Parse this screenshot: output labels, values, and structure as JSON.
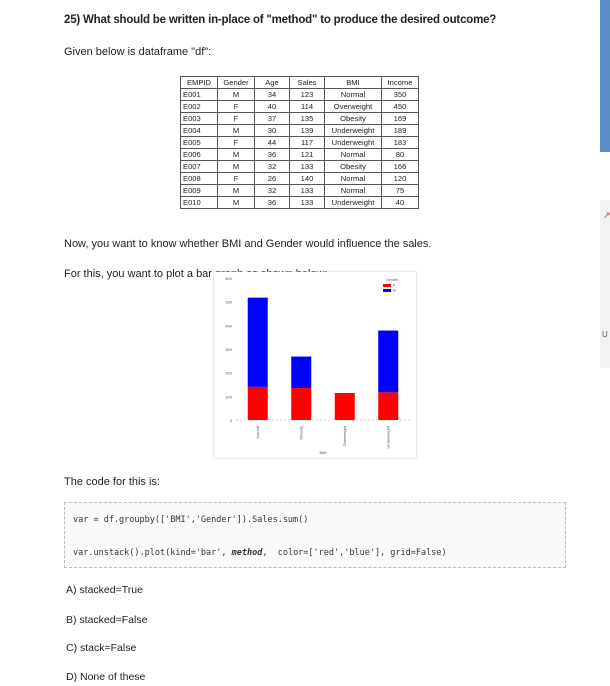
{
  "question": "25) What should be written in-place of \"method\" to produce the desired outcome?",
  "given": "Given below is dataframe \"df\":",
  "table": {
    "headers": [
      "EMPID",
      "Gender",
      "Age",
      "Sales",
      "BMI",
      "Income"
    ],
    "rows": [
      [
        "E001",
        "M",
        "34",
        "123",
        "Normal",
        "350"
      ],
      [
        "E002",
        "F",
        "40",
        "114",
        "Overweight",
        "450"
      ],
      [
        "E003",
        "F",
        "37",
        "135",
        "Obesity",
        "169"
      ],
      [
        "E004",
        "M",
        "30",
        "139",
        "Underweight",
        "189"
      ],
      [
        "E005",
        "F",
        "44",
        "117",
        "Underweight",
        "183"
      ],
      [
        "E006",
        "M",
        "36",
        "121",
        "Normal",
        "80"
      ],
      [
        "E007",
        "M",
        "32",
        "133",
        "Obesity",
        "166"
      ],
      [
        "E008",
        "F",
        "26",
        "140",
        "Normal",
        "120"
      ],
      [
        "E009",
        "M",
        "32",
        "133",
        "Normal",
        "75"
      ],
      [
        "E010",
        "M",
        "36",
        "133",
        "Underweight",
        "40"
      ]
    ]
  },
  "para1": "Now, you want to know whether BMI and Gender would influence the sales.",
  "para2": "For this, you want to plot a bar graph as shown below:",
  "chart_data": {
    "type": "bar",
    "stacked": true,
    "categories": [
      "Normal",
      "Obesity",
      "Overweight",
      "Underweight"
    ],
    "series": [
      {
        "name": "F",
        "color": "#ff0000",
        "values": [
          140,
          135,
          114,
          117
        ]
      },
      {
        "name": "M",
        "color": "#0000ff",
        "values": [
          377,
          133,
          0,
          261
        ]
      }
    ],
    "xlabel": "BMI",
    "ylabel": "",
    "legend_title": "Gender",
    "legend_position": "top-right",
    "yticks": [
      "0",
      "100",
      "200",
      "300",
      "400",
      "500",
      "600"
    ],
    "ylim": [
      0,
      600
    ],
    "grid": false
  },
  "code_label": "The code for this is:",
  "code": {
    "line1": "var = df.groupby(['BMI','Gender']).Sales.sum()",
    "line2_pre": "var.unstack().plot(kind='bar', ",
    "line2_method": "method",
    "line2_post": ",  color=['red','blue'], grid=False)"
  },
  "options": [
    "A) stacked=True",
    "B) stacked=False",
    "C) stack=False",
    "D) None of these"
  ],
  "side_letter": "U"
}
